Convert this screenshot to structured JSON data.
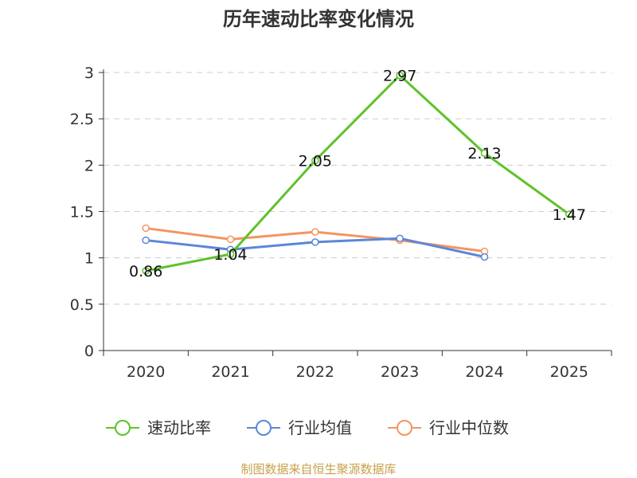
{
  "chart_data": {
    "type": "line",
    "title": "历年速动比率变化情况",
    "categories": [
      "2020",
      "2021",
      "2022",
      "2023",
      "2024",
      "2025"
    ],
    "ylim": [
      0,
      3
    ],
    "y_ticks": [
      "0",
      "0.5",
      "1",
      "1.5",
      "2",
      "2.5",
      "3"
    ],
    "grid": true,
    "legend_position": "bottom",
    "series": [
      {
        "name": "速动比率",
        "color": "#5fc22a",
        "values": [
          0.86,
          1.04,
          2.05,
          2.97,
          2.13,
          1.47
        ],
        "labels": [
          "0.86",
          "1.04",
          "2.05",
          "2.97",
          "2.13",
          "1.47"
        ]
      },
      {
        "name": "行业均值",
        "color": "#5b87d8",
        "values": [
          1.19,
          1.09,
          1.17,
          1.21,
          1.01,
          null
        ]
      },
      {
        "name": "行业中位数",
        "color": "#f4955f",
        "values": [
          1.32,
          1.2,
          1.28,
          1.19,
          1.07,
          null
        ]
      }
    ],
    "source": "制图数据来自恒生聚源数据库"
  }
}
